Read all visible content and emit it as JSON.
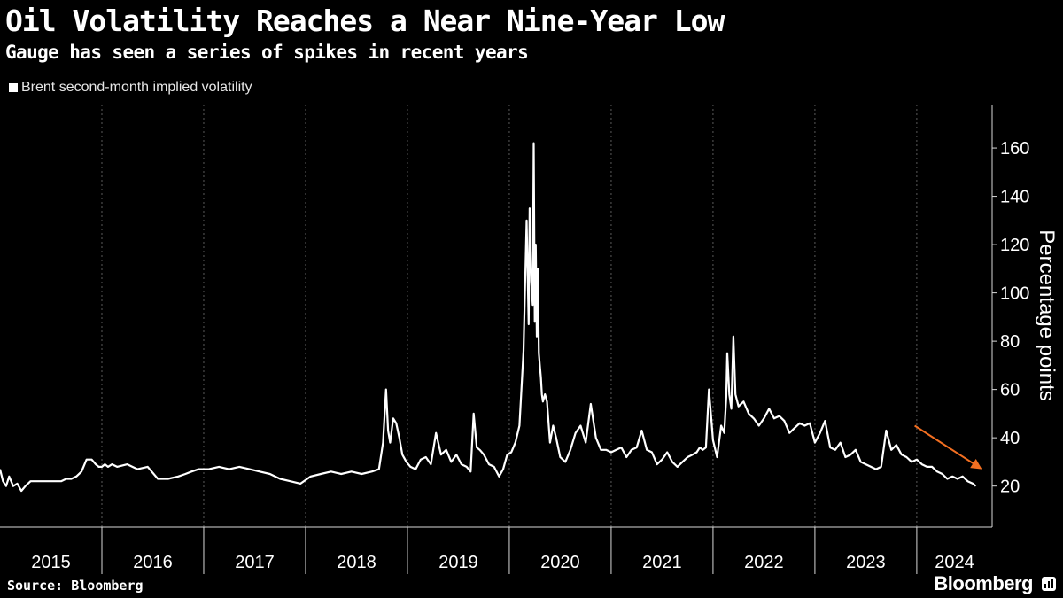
{
  "header": {
    "title": "Oil Volatility Reaches a Near Nine-Year Low",
    "subtitle": "Gauge has seen a series of spikes in recent years"
  },
  "footer": {
    "source": "Source: Bloomberg",
    "brand": "Bloomberg"
  },
  "colors": {
    "background": "#000000",
    "line": "#ffffff",
    "grid": "#5a5a5a",
    "annotation_arrow": "#f36f21"
  },
  "chart_data": {
    "type": "line",
    "title": "Oil Volatility Reaches a Near Nine-Year Low",
    "subtitle": "Gauge has seen a series of spikes in recent years",
    "ylabel": "Percentage points",
    "xlabel": "",
    "ylim": [
      3,
      178
    ],
    "xlim": [
      2015.0,
      2024.74
    ],
    "y_ticks": [
      20,
      40,
      60,
      80,
      100,
      120,
      140,
      160
    ],
    "x_ticks": [
      "2015",
      "2016",
      "2017",
      "2018",
      "2019",
      "2020",
      "2021",
      "2022",
      "2023",
      "2024"
    ],
    "grid": true,
    "legend_position": "top-left",
    "annotation": "downward arrow highlighting the 2024 decline",
    "series": [
      {
        "name": "Brent second-month implied volatility",
        "x": [
          2015.0,
          2015.03,
          2015.06,
          2015.09,
          2015.13,
          2015.17,
          2015.21,
          2015.25,
          2015.3,
          2015.35,
          2015.4,
          2015.45,
          2015.5,
          2015.55,
          2015.6,
          2015.65,
          2015.7,
          2015.75,
          2015.8,
          2015.85,
          2015.9,
          2015.94,
          2015.97,
          2016.0,
          2016.03,
          2016.06,
          2016.1,
          2016.15,
          2016.25,
          2016.35,
          2016.45,
          2016.55,
          2016.65,
          2016.75,
          2016.82,
          2016.88,
          2016.95,
          2017.05,
          2017.15,
          2017.25,
          2017.35,
          2017.45,
          2017.55,
          2017.65,
          2017.75,
          2017.85,
          2017.95,
          2018.05,
          2018.15,
          2018.25,
          2018.35,
          2018.45,
          2018.55,
          2018.65,
          2018.72,
          2018.76,
          2018.79,
          2018.81,
          2018.83,
          2018.86,
          2018.89,
          2018.92,
          2018.95,
          2018.99,
          2019.03,
          2019.08,
          2019.13,
          2019.18,
          2019.23,
          2019.28,
          2019.33,
          2019.38,
          2019.43,
          2019.48,
          2019.53,
          2019.58,
          2019.62,
          2019.65,
          2019.68,
          2019.71,
          2019.75,
          2019.8,
          2019.85,
          2019.9,
          2019.94,
          2019.98,
          2020.02,
          2020.06,
          2020.1,
          2020.14,
          2020.17,
          2020.19,
          2020.2,
          2020.215,
          2020.23,
          2020.24,
          2020.25,
          2020.26,
          2020.27,
          2020.28,
          2020.29,
          2020.3,
          2020.31,
          2020.32,
          2020.33,
          2020.35,
          2020.37,
          2020.4,
          2020.43,
          2020.46,
          2020.5,
          2020.55,
          2020.6,
          2020.65,
          2020.7,
          2020.75,
          2020.8,
          2020.85,
          2020.9,
          2020.95,
          2021.0,
          2021.05,
          2021.1,
          2021.15,
          2021.2,
          2021.25,
          2021.3,
          2021.35,
          2021.4,
          2021.45,
          2021.5,
          2021.55,
          2021.6,
          2021.65,
          2021.7,
          2021.75,
          2021.8,
          2021.84,
          2021.87,
          2021.9,
          2021.93,
          2021.96,
          2022.0,
          2022.04,
          2022.08,
          2022.11,
          2022.13,
          2022.14,
          2022.16,
          2022.18,
          2022.2,
          2022.22,
          2022.25,
          2022.3,
          2022.35,
          2022.4,
          2022.45,
          2022.5,
          2022.55,
          2022.6,
          2022.65,
          2022.7,
          2022.75,
          2022.8,
          2022.85,
          2022.9,
          2022.95,
          2023.0,
          2023.05,
          2023.1,
          2023.15,
          2023.2,
          2023.25,
          2023.3,
          2023.35,
          2023.4,
          2023.45,
          2023.5,
          2023.55,
          2023.6,
          2023.65,
          2023.7,
          2023.75,
          2023.8,
          2023.85,
          2023.9,
          2023.95,
          2024.0,
          2024.05,
          2024.1,
          2024.15,
          2024.2,
          2024.25,
          2024.3,
          2024.35,
          2024.4,
          2024.45,
          2024.5,
          2024.55,
          2024.58
        ],
        "y": [
          27,
          22,
          20,
          24,
          20,
          21,
          18,
          20,
          22,
          22,
          22,
          22,
          22,
          22,
          22,
          23,
          23,
          24,
          26,
          31,
          31,
          29,
          28,
          28,
          29,
          28,
          29,
          28,
          29,
          27,
          28,
          23,
          23,
          24,
          25,
          26,
          27,
          27,
          28,
          27,
          28,
          27,
          26,
          25,
          23,
          22,
          21,
          24,
          25,
          26,
          25,
          26,
          25,
          26,
          27,
          38,
          60,
          43,
          38,
          48,
          46,
          40,
          33,
          30,
          28,
          27,
          31,
          32,
          29,
          42,
          33,
          35,
          30,
          33,
          29,
          28,
          26,
          50,
          36,
          35,
          33,
          29,
          28,
          24,
          27,
          33,
          34,
          38,
          45,
          76,
          130,
          87,
          135,
          105,
          95,
          162,
          88,
          120,
          82,
          110,
          75,
          70,
          65,
          58,
          55,
          58,
          55,
          38,
          45,
          40,
          32,
          30,
          35,
          42,
          45,
          38,
          54,
          40,
          35,
          35,
          34,
          35,
          36,
          32,
          35,
          36,
          43,
          35,
          34,
          29,
          31,
          34,
          30,
          28,
          30,
          32,
          33,
          34,
          36,
          35,
          36,
          60,
          39,
          32,
          45,
          42,
          57,
          75,
          58,
          52,
          82,
          58,
          53,
          55,
          50,
          48,
          45,
          48,
          52,
          48,
          49,
          47,
          42,
          44,
          46,
          45,
          46,
          38,
          42,
          47,
          36,
          35,
          38,
          32,
          33,
          35,
          30,
          29,
          28,
          27,
          28,
          43,
          35,
          37,
          33,
          32,
          30,
          31,
          29,
          28,
          28,
          26,
          25,
          23,
          24,
          23,
          24,
          22,
          21,
          20
        ]
      }
    ]
  }
}
